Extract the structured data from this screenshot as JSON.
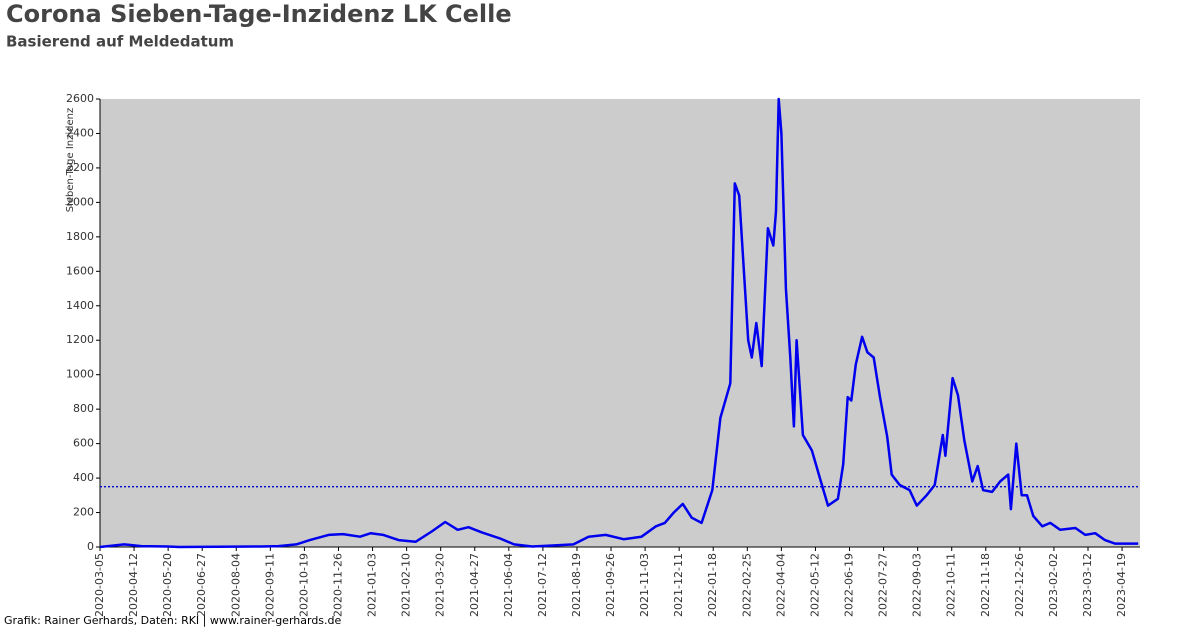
{
  "chart_data": {
    "type": "line",
    "title": "Corona Sieben-Tage-Inzidenz LK Celle",
    "subtitle": "Basierend auf Meldedatum",
    "y_label": "Sieben-Tage Inzidenz",
    "footer": "Grafik: Rainer Gerhards, Daten: RKI | www.rainer-gerhards.de",
    "xlim": [
      "2020-03-05",
      "2023-05-09"
    ],
    "ylim": [
      0,
      2600
    ],
    "yticks": [
      0,
      200,
      400,
      600,
      800,
      1000,
      1200,
      1400,
      1600,
      1800,
      2000,
      2200,
      2400,
      2600
    ],
    "xticks": [
      "2020-03-05",
      "2020-04-12",
      "2020-05-20",
      "2020-06-27",
      "2020-08-04",
      "2020-09-11",
      "2020-10-19",
      "2020-11-26",
      "2021-01-03",
      "2021-02-10",
      "2021-03-20",
      "2021-04-27",
      "2021-06-04",
      "2021-07-12",
      "2021-08-19",
      "2021-09-26",
      "2021-11-03",
      "2021-12-11",
      "2022-01-18",
      "2022-02-25",
      "2022-04-04",
      "2022-05-12",
      "2022-06-19",
      "2022-07-27",
      "2022-09-03",
      "2022-10-11",
      "2022-11-18",
      "2022-12-26",
      "2023-02-02",
      "2023-03-12",
      "2023-04-19"
    ],
    "reference_line": 350,
    "reference_color": "#0000cc",
    "background": "#cccccc",
    "series": [
      {
        "name": "Sieben-Tage Inzidenz",
        "color": "#0000ee",
        "x": [
          "2020-03-05",
          "2020-04-01",
          "2020-04-20",
          "2020-05-20",
          "2020-06-01",
          "2020-09-01",
          "2020-09-20",
          "2020-10-10",
          "2020-10-25",
          "2020-11-15",
          "2020-12-01",
          "2020-12-20",
          "2021-01-01",
          "2021-01-15",
          "2021-02-01",
          "2021-02-20",
          "2021-03-10",
          "2021-03-25",
          "2021-04-08",
          "2021-04-20",
          "2021-05-05",
          "2021-05-25",
          "2021-06-10",
          "2021-06-30",
          "2021-07-20",
          "2021-08-15",
          "2021-09-01",
          "2021-09-20",
          "2021-10-10",
          "2021-10-30",
          "2021-11-15",
          "2021-11-25",
          "2021-12-05",
          "2021-12-15",
          "2021-12-25",
          "2022-01-05",
          "2022-01-17",
          "2022-01-26",
          "2022-02-06",
          "2022-02-11",
          "2022-02-16",
          "2022-02-26",
          "2022-03-02",
          "2022-03-07",
          "2022-03-13",
          "2022-03-20",
          "2022-03-26",
          "2022-03-29",
          "2022-04-01",
          "2022-04-04",
          "2022-04-09",
          "2022-04-14",
          "2022-04-18",
          "2022-04-21",
          "2022-04-28",
          "2022-05-08",
          "2022-05-17",
          "2022-05-26",
          "2022-06-06",
          "2022-06-12",
          "2022-06-17",
          "2022-06-21",
          "2022-06-26",
          "2022-07-03",
          "2022-07-09",
          "2022-07-16",
          "2022-07-23",
          "2022-07-31",
          "2022-08-05",
          "2022-08-14",
          "2022-08-25",
          "2022-09-02",
          "2022-09-13",
          "2022-09-22",
          "2022-10-01",
          "2022-10-04",
          "2022-10-12",
          "2022-10-18",
          "2022-10-25",
          "2022-11-03",
          "2022-11-09",
          "2022-11-15",
          "2022-11-25",
          "2022-12-04",
          "2022-12-13",
          "2022-12-16",
          "2022-12-22",
          "2022-12-28",
          "2023-01-03",
          "2023-01-10",
          "2023-01-20",
          "2023-01-29",
          "2023-02-09",
          "2023-02-26",
          "2023-03-09",
          "2023-03-20",
          "2023-03-31",
          "2023-04-11",
          "2023-05-07"
        ],
        "values": [
          0,
          15,
          5,
          3,
          0,
          3,
          5,
          15,
          40,
          70,
          75,
          60,
          80,
          70,
          40,
          30,
          90,
          145,
          100,
          115,
          85,
          50,
          15,
          3,
          8,
          15,
          60,
          70,
          45,
          60,
          120,
          140,
          200,
          250,
          170,
          140,
          330,
          750,
          950,
          2110,
          2040,
          1200,
          1100,
          1300,
          1050,
          1850,
          1750,
          1950,
          2600,
          2400,
          1500,
          1100,
          700,
          1200,
          650,
          560,
          400,
          240,
          280,
          480,
          870,
          850,
          1060,
          1220,
          1130,
          1100,
          870,
          640,
          420,
          360,
          330,
          240,
          300,
          360,
          650,
          530,
          980,
          880,
          620,
          380,
          470,
          330,
          320,
          380,
          420,
          220,
          600,
          300,
          300,
          180,
          120,
          140,
          100,
          110,
          70,
          80,
          40,
          20,
          20
        ]
      }
    ]
  }
}
